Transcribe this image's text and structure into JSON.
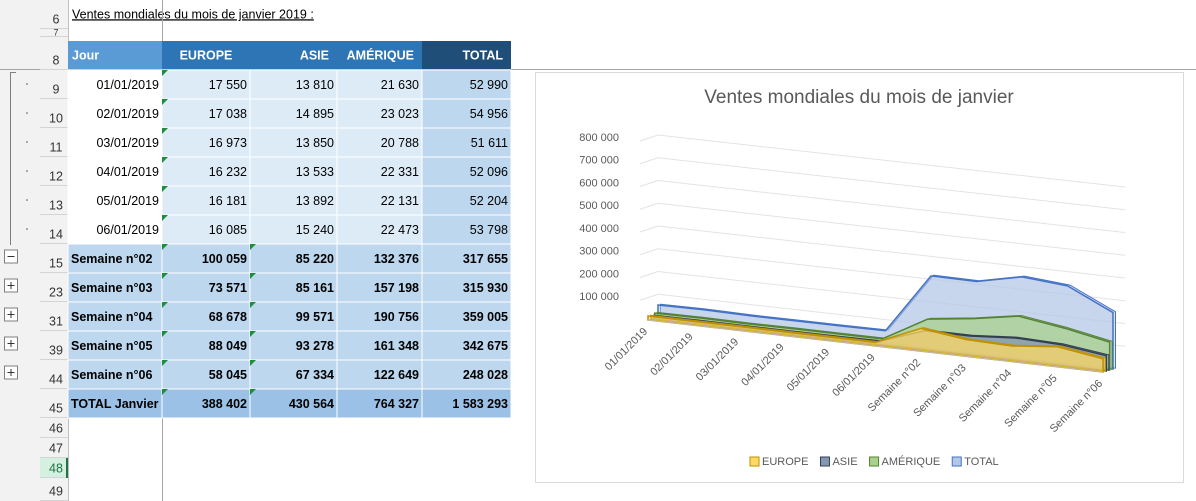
{
  "sheet": {
    "title": "Ventes mondiales du mois de janvier 2019 :",
    "row_numbers": [
      "6",
      "7",
      "8",
      "9",
      "10",
      "11",
      "12",
      "13",
      "14",
      "15",
      "23",
      "31",
      "39",
      "44",
      "45",
      "46",
      "47",
      "48",
      "49"
    ]
  },
  "table": {
    "header": [
      "Jour",
      "EUROPE",
      "ASIE",
      "AMÉRIQUE",
      "TOTAL"
    ],
    "rows": [
      [
        "01/01/2019",
        "17 550",
        "13 810",
        "21 630",
        "52 990"
      ],
      [
        "02/01/2019",
        "17 038",
        "14 895",
        "23 023",
        "54 956"
      ],
      [
        "03/01/2019",
        "16 973",
        "13 850",
        "20 788",
        "51 611"
      ],
      [
        "04/01/2019",
        "16 232",
        "13 533",
        "22 331",
        "52 096"
      ],
      [
        "05/01/2019",
        "16 181",
        "13 892",
        "22 131",
        "52 204"
      ],
      [
        "06/01/2019",
        "16 085",
        "15 240",
        "22 473",
        "53 798"
      ],
      [
        "Semaine n°02",
        "100 059",
        "85 220",
        "132 376",
        "317 655"
      ],
      [
        "Semaine n°03",
        "73 571",
        "85 161",
        "157 198",
        "315 930"
      ],
      [
        "Semaine n°04",
        "68 678",
        "99 571",
        "190 756",
        "359 005"
      ],
      [
        "Semaine n°05",
        "88 049",
        "93 278",
        "161 348",
        "342 675"
      ],
      [
        "Semaine n°06",
        "58 045",
        "67 334",
        "122 649",
        "248 028"
      ],
      [
        "TOTAL Janvier",
        "388 402",
        "430 564",
        "764 327",
        "1 583 293"
      ]
    ]
  },
  "chart": {
    "type": "area",
    "title": "Ventes mondiales du mois de janvier",
    "categories": [
      "01/01/2019",
      "02/01/2019",
      "03/01/2019",
      "04/01/2019",
      "05/01/2019",
      "06/01/2019",
      "Semaine n°02",
      "Semaine n°03",
      "Semaine n°04",
      "Semaine n°05",
      "Semaine n°06"
    ],
    "series": [
      {
        "name": "EUROPE",
        "color": "#ffd966",
        "values": [
          17550,
          17038,
          16973,
          16232,
          16181,
          16085,
          100059,
          73571,
          68678,
          88049,
          58045
        ]
      },
      {
        "name": "ASIE",
        "color": "#8497b0",
        "values": [
          13810,
          14895,
          13850,
          13533,
          13892,
          15240,
          85220,
          85161,
          99571,
          93278,
          67334
        ]
      },
      {
        "name": "AMÉRIQUE",
        "color": "#a9d18e",
        "values": [
          21630,
          23023,
          20788,
          22331,
          22131,
          22473,
          132376,
          157198,
          190756,
          161348,
          122649
        ]
      },
      {
        "name": "TOTAL",
        "color": "#b4c7e7",
        "values": [
          52990,
          54956,
          51611,
          52096,
          52204,
          53798,
          317655,
          315930,
          359005,
          342675,
          248028
        ]
      }
    ],
    "ylim": [
      0,
      800000
    ],
    "yticks": [
      {
        "value": 100000,
        "label": "100 000"
      },
      {
        "value": 200000,
        "label": "200 000"
      },
      {
        "value": 300000,
        "label": "300 000"
      },
      {
        "value": 400000,
        "label": "400 000"
      },
      {
        "value": 500000,
        "label": "500 000"
      },
      {
        "value": 600000,
        "label": "600 000"
      },
      {
        "value": 700000,
        "label": "700 000"
      },
      {
        "value": 800000,
        "label": "800 000"
      }
    ],
    "grid": true
  }
}
